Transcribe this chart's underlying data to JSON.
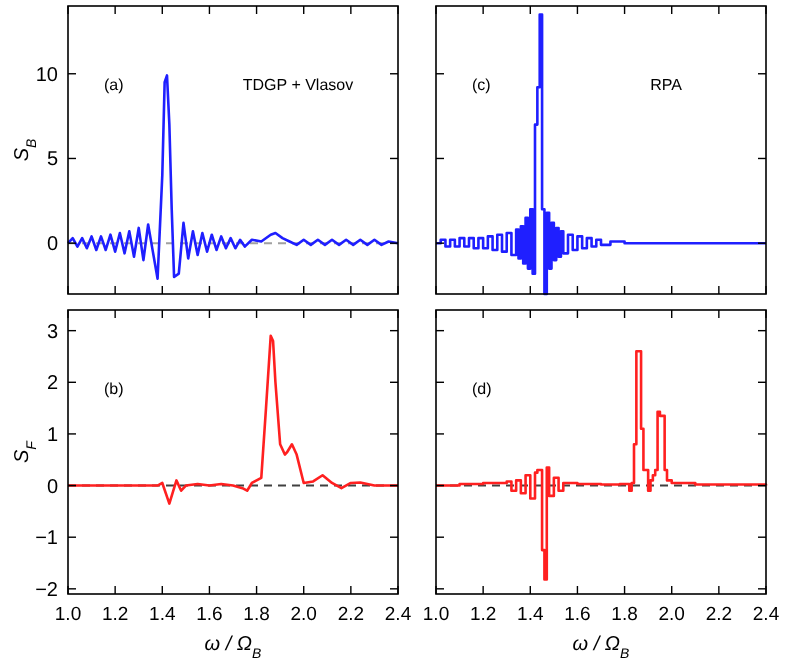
{
  "chart_data": [
    {
      "type": "line",
      "ylabel": "S$_{B}$",
      "annotations": [
        "(a)",
        "TDGP + Vlasov"
      ],
      "xlim": [
        1.0,
        2.4
      ],
      "xticks": [
        1.0,
        1.2,
        1.4,
        1.6,
        1.8,
        2.0,
        2.2,
        2.4
      ],
      "ylim": [
        -3,
        14
      ],
      "yticks": [
        0,
        5,
        10
      ],
      "tick_labels": "y",
      "ref_lines": [
        {
          "axis": "y",
          "value": 0,
          "color": "#a0a0a0",
          "line_style": "dashed"
        }
      ],
      "series": [
        {
          "color": "#1f1fff",
          "x": [
            1.0,
            1.02,
            1.04,
            1.06,
            1.08,
            1.1,
            1.12,
            1.14,
            1.16,
            1.18,
            1.2,
            1.22,
            1.24,
            1.26,
            1.28,
            1.3,
            1.32,
            1.34,
            1.36,
            1.38,
            1.4,
            1.41,
            1.42,
            1.43,
            1.44,
            1.45,
            1.47,
            1.49,
            1.51,
            1.53,
            1.55,
            1.57,
            1.59,
            1.61,
            1.63,
            1.65,
            1.67,
            1.69,
            1.71,
            1.73,
            1.75,
            1.78,
            1.82,
            1.86,
            1.88,
            1.91,
            1.94,
            1.97,
            2.0,
            2.03,
            2.06,
            2.09,
            2.12,
            2.15,
            2.18,
            2.21,
            2.24,
            2.27,
            2.3,
            2.33,
            2.36,
            2.4
          ],
          "values": [
            0,
            0.3,
            -0.2,
            0.3,
            -0.3,
            0.4,
            -0.4,
            0.4,
            -0.4,
            0.5,
            -0.5,
            0.6,
            -0.6,
            0.7,
            -0.8,
            0.9,
            -1.0,
            1.1,
            -0.5,
            -2.1,
            4,
            9.5,
            9.9,
            7,
            2,
            -2.0,
            -1.8,
            1.2,
            -0.9,
            0.7,
            -0.7,
            0.6,
            -0.5,
            0.5,
            -0.4,
            0.4,
            -0.3,
            0.3,
            -0.3,
            0.2,
            -0.2,
            0.2,
            0.1,
            0.5,
            0.6,
            0.3,
            0.1,
            -0.1,
            0.2,
            -0.1,
            0.2,
            -0.1,
            0.2,
            -0.1,
            0.2,
            -0.1,
            0.2,
            -0.1,
            0.2,
            -0.1,
            0.1,
            0
          ]
        }
      ]
    },
    {
      "type": "line",
      "ylabel": "S$_{F}$",
      "xlabel": "ω / Ω$_{B}$",
      "annotations": [
        "(b)"
      ],
      "xlim": [
        1.0,
        2.4
      ],
      "xticks": [
        {
          "value": 1.0,
          "label": "1.0"
        },
        {
          "value": 1.2,
          "label": "1.2"
        },
        {
          "value": 1.4,
          "label": "1.4"
        },
        {
          "value": 1.6,
          "label": "1.6"
        },
        {
          "value": 1.8,
          "label": "1.8"
        },
        {
          "value": 2.0,
          "label": "2.0"
        },
        {
          "value": 2.2,
          "label": "2.2"
        },
        {
          "value": 2.4,
          "label": "2.4"
        }
      ],
      "ylim": [
        -2.1,
        3.4
      ],
      "yticks": [
        {
          "value": -2,
          "label": "−2"
        },
        {
          "value": -1,
          "label": "−1"
        },
        0,
        1,
        2,
        3
      ],
      "ref_lines": [
        {
          "axis": "y",
          "value": 0,
          "color": "#404040",
          "line_style": "dashed"
        }
      ],
      "series": [
        {
          "color": "#ff2020",
          "x": [
            1.0,
            1.2,
            1.3,
            1.38,
            1.4,
            1.43,
            1.46,
            1.48,
            1.5,
            1.55,
            1.6,
            1.65,
            1.7,
            1.74,
            1.76,
            1.78,
            1.8,
            1.82,
            1.84,
            1.86,
            1.87,
            1.88,
            1.9,
            1.92,
            1.93,
            1.95,
            1.97,
            2.0,
            2.04,
            2.08,
            2.12,
            2.16,
            2.2,
            2.24,
            2.3,
            2.4
          ],
          "values": [
            0,
            0,
            0,
            0,
            0.05,
            -0.35,
            0.1,
            -0.1,
            0,
            0.03,
            0,
            0.03,
            0,
            -0.05,
            -0.1,
            0.05,
            0.1,
            0.15,
            1.5,
            2.9,
            2.8,
            2.0,
            0.8,
            0.6,
            0.65,
            0.8,
            0.6,
            0.05,
            0.08,
            0.2,
            0.05,
            -0.05,
            0.05,
            0.06,
            0,
            0
          ]
        }
      ]
    },
    {
      "type": "step",
      "annotations": [
        "(c)",
        "RPA"
      ],
      "xlim": [
        1.0,
        2.4
      ],
      "xticks": [
        1.0,
        1.2,
        1.4,
        1.6,
        1.8,
        2.0,
        2.2,
        2.4
      ],
      "ylim": [
        -3,
        14
      ],
      "yticks": [
        0,
        5,
        10
      ],
      "tick_labels": false,
      "series": [
        {
          "color": "#1f1fff",
          "x": [
            1.0,
            1.02,
            1.04,
            1.06,
            1.08,
            1.1,
            1.12,
            1.14,
            1.16,
            1.18,
            1.2,
            1.22,
            1.24,
            1.26,
            1.28,
            1.3,
            1.32,
            1.34,
            1.35,
            1.36,
            1.37,
            1.38,
            1.39,
            1.4,
            1.41,
            1.42,
            1.43,
            1.44,
            1.45,
            1.46,
            1.47,
            1.48,
            1.49,
            1.5,
            1.51,
            1.52,
            1.53,
            1.54,
            1.56,
            1.58,
            1.6,
            1.62,
            1.64,
            1.66,
            1.68,
            1.7,
            1.74,
            1.8,
            1.9,
            2.0,
            2.1,
            2.2,
            2.3,
            2.4
          ],
          "values": [
            0,
            0.2,
            -0.2,
            0.2,
            -0.2,
            0.3,
            -0.2,
            0.3,
            -0.3,
            0.3,
            -0.3,
            0.4,
            -0.4,
            0.5,
            -0.5,
            0.6,
            -0.7,
            0.8,
            -0.9,
            1.0,
            -1.2,
            1.5,
            -1.5,
            2.0,
            -1.8,
            7,
            9.2,
            13.5,
            2,
            -3,
            1.8,
            -1.5,
            1.2,
            -1.0,
            0.9,
            -0.8,
            0.7,
            -0.6,
            0.5,
            -0.4,
            0.4,
            -0.3,
            0.3,
            -0.2,
            0.2,
            -0.1,
            0.1,
            0,
            0,
            0,
            0,
            0,
            0,
            0
          ]
        }
      ]
    },
    {
      "type": "step",
      "xlabel": "ω / Ω$_{B}$",
      "annotations": [
        "(d)"
      ],
      "xlim": [
        1.0,
        2.4
      ],
      "xticks": [
        {
          "value": 1.0,
          "label": "1.0"
        },
        {
          "value": 1.2,
          "label": "1.2"
        },
        {
          "value": 1.4,
          "label": "1.4"
        },
        {
          "value": 1.6,
          "label": "1.6"
        },
        {
          "value": 1.8,
          "label": "1.8"
        },
        {
          "value": 2.0,
          "label": "2.0"
        },
        {
          "value": 2.2,
          "label": "2.2"
        },
        {
          "value": 2.4,
          "label": "2.4"
        }
      ],
      "ylim": [
        -2.1,
        3.4
      ],
      "yticks": [
        -2,
        -1,
        0,
        1,
        2,
        3
      ],
      "tick_labels": "x",
      "ref_lines": [
        {
          "axis": "y",
          "value": 0,
          "color": "#404040",
          "line_style": "dashed"
        }
      ],
      "series": [
        {
          "color": "#ff2020",
          "x": [
            1.0,
            1.1,
            1.2,
            1.3,
            1.32,
            1.34,
            1.36,
            1.38,
            1.4,
            1.42,
            1.43,
            1.45,
            1.46,
            1.47,
            1.48,
            1.5,
            1.52,
            1.54,
            1.6,
            1.7,
            1.78,
            1.82,
            1.83,
            1.84,
            1.85,
            1.87,
            1.88,
            1.9,
            1.91,
            1.92,
            1.93,
            1.94,
            1.95,
            1.97,
            1.98,
            2.0,
            2.1,
            2.2,
            2.4
          ],
          "values": [
            0,
            0.03,
            0.05,
            0.08,
            -0.1,
            0.1,
            -0.15,
            0.2,
            -0.25,
            0.25,
            0.3,
            -1.25,
            -1.82,
            0.35,
            -0.2,
            0.15,
            -0.1,
            0.05,
            0.03,
            0.02,
            0.03,
            -0.1,
            0.05,
            0.8,
            2.6,
            1.1,
            0.3,
            -0.1,
            0.1,
            0.2,
            0.3,
            1.43,
            1.35,
            0.3,
            0.1,
            0.05,
            0.02,
            0.02,
            0
          ]
        }
      ]
    }
  ]
}
